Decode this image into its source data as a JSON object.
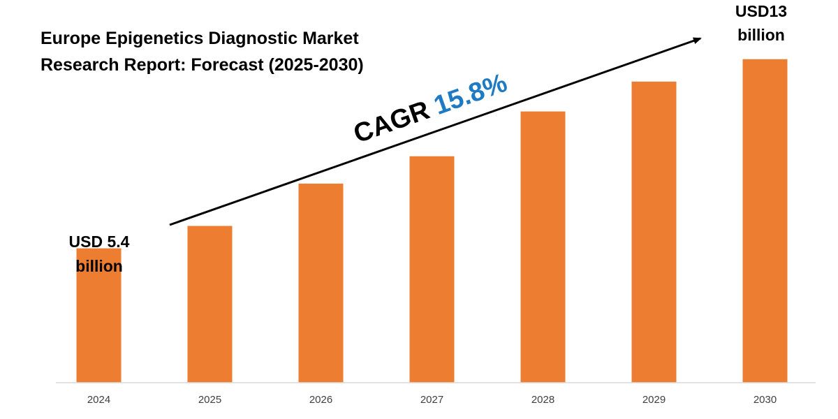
{
  "title_line1": "Europe Epigenetics Diagnostic Market",
  "title_line2": "Research Report: Forecast (2025-2030)",
  "cagr": {
    "prefix": "CAGR",
    "value": "15.8%"
  },
  "first_label": {
    "line1": "USD 5.4",
    "line2": "billion"
  },
  "last_label": {
    "line1": "USD13",
    "line2": "billion"
  },
  "colors": {
    "bar": "#ed7d31",
    "cagr_value": "#1f7ac4",
    "axis": "#d9d9d9",
    "arrow": "#000000"
  },
  "chart_data": {
    "type": "bar",
    "title": "Europe Epigenetics Diagnostic Market Research Report: Forecast (2025-2030)",
    "xlabel": "",
    "ylabel": "",
    "categories": [
      "2024",
      "2025",
      "2026",
      "2027",
      "2028",
      "2029",
      "2030"
    ],
    "series": [
      {
        "values": [
          5.4,
          6.3,
          8.0,
          9.1,
          10.9,
          12.1,
          13.0
        ]
      }
    ],
    "unit": "USD billion",
    "ylim": [
      0,
      14.2
    ],
    "grid": false,
    "legend": "none"
  }
}
